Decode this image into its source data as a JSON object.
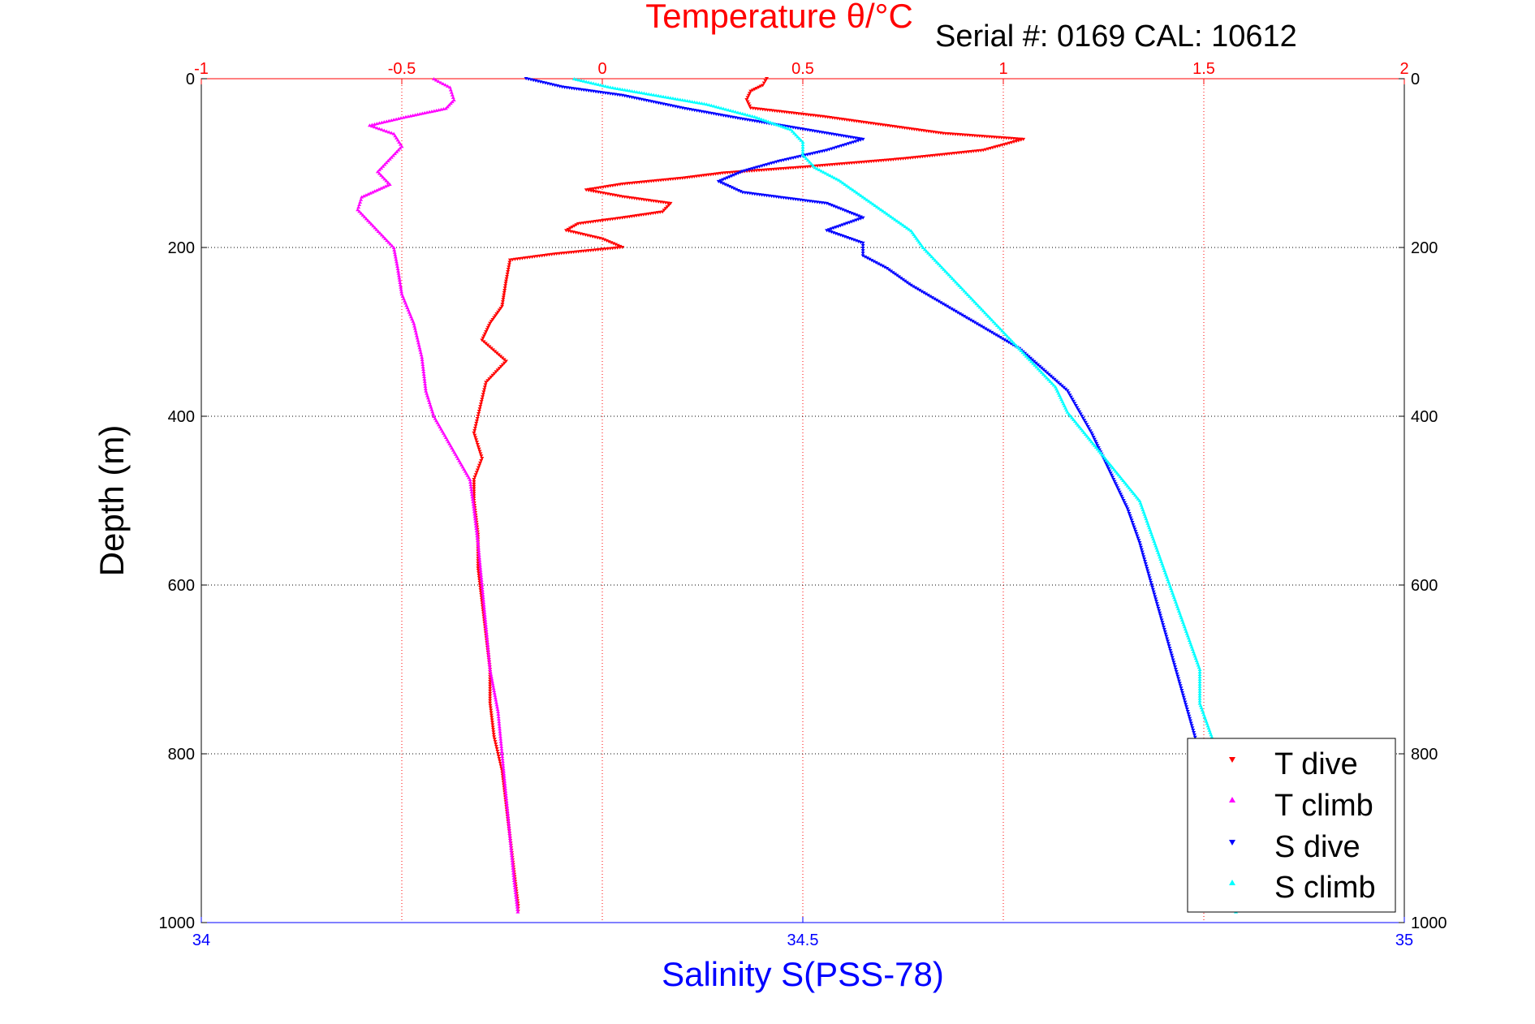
{
  "serial_text": "Serial #: 0169 CAL: 10612",
  "chart_data": {
    "type": "scatter",
    "title": "Temperature θ/°C",
    "xlabel_top": "Temperature θ/°C",
    "xlabel_bottom": "Salinity S(PSS-78)",
    "ylabel": "Depth (m)",
    "temperature_axis": {
      "range": [
        -1,
        2
      ],
      "ticks": [
        -1,
        -0.5,
        0,
        0.5,
        1,
        1.5,
        2
      ],
      "tick_labels": [
        "-1",
        "-0.5",
        "0",
        "0.5",
        "1",
        "1.5",
        "2"
      ],
      "color": "#ff0000"
    },
    "salinity_axis": {
      "range": [
        34,
        35
      ],
      "ticks": [
        34,
        34.5,
        35
      ],
      "tick_labels": [
        "34",
        "34.5",
        "35"
      ],
      "color": "#0000ff"
    },
    "depth_axis": {
      "range": [
        0,
        1000
      ],
      "reversed": true,
      "ticks": [
        0,
        200,
        400,
        600,
        800,
        1000
      ],
      "tick_labels": [
        "0",
        "200",
        "400",
        "600",
        "800",
        "1000"
      ]
    },
    "grid": true,
    "legend": {
      "placement": "bottom-right",
      "entries": [
        "T dive",
        "T climb",
        "S dive",
        "S climb"
      ]
    },
    "series": [
      {
        "name": "T dive",
        "axis": "temperature",
        "color": "#ff0000",
        "marker": "triangle-down",
        "points": [
          [
            0.41,
            0
          ],
          [
            0.4,
            8
          ],
          [
            0.37,
            15
          ],
          [
            0.36,
            25
          ],
          [
            0.37,
            35
          ],
          [
            0.55,
            45
          ],
          [
            0.7,
            55
          ],
          [
            0.85,
            65
          ],
          [
            1.05,
            72
          ],
          [
            0.95,
            85
          ],
          [
            0.75,
            95
          ],
          [
            0.5,
            105
          ],
          [
            0.3,
            112
          ],
          [
            0.2,
            118
          ],
          [
            0.05,
            125
          ],
          [
            -0.04,
            132
          ],
          [
            0.05,
            140
          ],
          [
            0.17,
            148
          ],
          [
            0.15,
            158
          ],
          [
            0.05,
            165
          ],
          [
            -0.06,
            172
          ],
          [
            -0.09,
            180
          ],
          [
            0.0,
            190
          ],
          [
            0.05,
            200
          ],
          [
            -0.12,
            208
          ],
          [
            -0.23,
            215
          ],
          [
            -0.24,
            240
          ],
          [
            -0.25,
            270
          ],
          [
            -0.28,
            290
          ],
          [
            -0.3,
            310
          ],
          [
            -0.24,
            335
          ],
          [
            -0.29,
            360
          ],
          [
            -0.3,
            380
          ],
          [
            -0.31,
            400
          ],
          [
            -0.32,
            420
          ],
          [
            -0.3,
            450
          ],
          [
            -0.32,
            475
          ],
          [
            -0.32,
            500
          ],
          [
            -0.31,
            540
          ],
          [
            -0.31,
            580
          ],
          [
            -0.3,
            620
          ],
          [
            -0.29,
            660
          ],
          [
            -0.28,
            700
          ],
          [
            -0.28,
            740
          ],
          [
            -0.27,
            780
          ],
          [
            -0.25,
            820
          ],
          [
            -0.24,
            860
          ],
          [
            -0.23,
            900
          ],
          [
            -0.22,
            940
          ],
          [
            -0.21,
            980
          ],
          [
            -0.21,
            990
          ]
        ]
      },
      {
        "name": "T climb",
        "axis": "temperature",
        "color": "#ff00ff",
        "marker": "triangle-up",
        "points": [
          [
            -0.42,
            0
          ],
          [
            -0.38,
            10
          ],
          [
            -0.37,
            25
          ],
          [
            -0.39,
            35
          ],
          [
            -0.49,
            45
          ],
          [
            -0.58,
            55
          ],
          [
            -0.52,
            65
          ],
          [
            -0.5,
            80
          ],
          [
            -0.53,
            95
          ],
          [
            -0.56,
            110
          ],
          [
            -0.53,
            125
          ],
          [
            -0.6,
            140
          ],
          [
            -0.61,
            155
          ],
          [
            -0.58,
            170
          ],
          [
            -0.55,
            185
          ],
          [
            -0.52,
            200
          ],
          [
            -0.51,
            225
          ],
          [
            -0.5,
            255
          ],
          [
            -0.47,
            290
          ],
          [
            -0.45,
            330
          ],
          [
            -0.44,
            370
          ],
          [
            -0.42,
            400
          ],
          [
            -0.39,
            425
          ],
          [
            -0.36,
            450
          ],
          [
            -0.33,
            475
          ],
          [
            -0.32,
            510
          ],
          [
            -0.31,
            550
          ],
          [
            -0.3,
            600
          ],
          [
            -0.29,
            650
          ],
          [
            -0.28,
            700
          ],
          [
            -0.26,
            750
          ],
          [
            -0.25,
            800
          ],
          [
            -0.24,
            850
          ],
          [
            -0.23,
            900
          ],
          [
            -0.22,
            950
          ],
          [
            -0.21,
            990
          ]
        ]
      },
      {
        "name": "S dive",
        "axis": "salinity",
        "color": "#0000ff",
        "marker": "triangle-down",
        "points": [
          [
            34.27,
            0
          ],
          [
            34.3,
            10
          ],
          [
            34.35,
            20
          ],
          [
            34.4,
            35
          ],
          [
            34.45,
            48
          ],
          [
            34.5,
            60
          ],
          [
            34.55,
            72
          ],
          [
            34.52,
            85
          ],
          [
            34.48,
            98
          ],
          [
            34.45,
            110
          ],
          [
            34.43,
            122
          ],
          [
            34.45,
            135
          ],
          [
            34.52,
            148
          ],
          [
            34.55,
            165
          ],
          [
            34.52,
            180
          ],
          [
            34.55,
            195
          ],
          [
            34.55,
            210
          ],
          [
            34.57,
            225
          ],
          [
            34.59,
            245
          ],
          [
            34.62,
            270
          ],
          [
            34.65,
            295
          ],
          [
            34.68,
            320
          ],
          [
            34.7,
            345
          ],
          [
            34.72,
            370
          ],
          [
            34.73,
            395
          ],
          [
            34.74,
            420
          ],
          [
            34.75,
            450
          ],
          [
            34.76,
            480
          ],
          [
            34.77,
            510
          ],
          [
            34.78,
            550
          ],
          [
            34.79,
            600
          ],
          [
            34.8,
            650
          ],
          [
            34.81,
            700
          ],
          [
            34.82,
            750
          ],
          [
            34.83,
            800
          ],
          [
            34.84,
            850
          ],
          [
            34.85,
            900
          ],
          [
            34.86,
            950
          ],
          [
            34.86,
            990
          ]
        ]
      },
      {
        "name": "S climb",
        "axis": "salinity",
        "color": "#00ffff",
        "marker": "triangle-up",
        "points": [
          [
            34.31,
            0
          ],
          [
            34.34,
            10
          ],
          [
            34.38,
            20
          ],
          [
            34.42,
            30
          ],
          [
            34.46,
            45
          ],
          [
            34.49,
            60
          ],
          [
            34.5,
            75
          ],
          [
            34.5,
            90
          ],
          [
            34.51,
            105
          ],
          [
            34.53,
            120
          ],
          [
            34.55,
            140
          ],
          [
            34.57,
            160
          ],
          [
            34.59,
            180
          ],
          [
            34.6,
            200
          ],
          [
            34.61,
            215
          ],
          [
            34.63,
            245
          ],
          [
            34.65,
            275
          ],
          [
            34.67,
            305
          ],
          [
            34.69,
            335
          ],
          [
            34.71,
            365
          ],
          [
            34.72,
            395
          ],
          [
            34.74,
            430
          ],
          [
            34.76,
            465
          ],
          [
            34.78,
            500
          ],
          [
            34.79,
            540
          ],
          [
            34.8,
            580
          ],
          [
            34.81,
            620
          ],
          [
            34.82,
            660
          ],
          [
            34.83,
            700
          ],
          [
            34.83,
            740
          ],
          [
            34.84,
            780
          ],
          [
            34.85,
            820
          ],
          [
            34.85,
            860
          ],
          [
            34.85,
            900
          ],
          [
            34.86,
            950
          ],
          [
            34.86,
            990
          ]
        ]
      }
    ]
  }
}
